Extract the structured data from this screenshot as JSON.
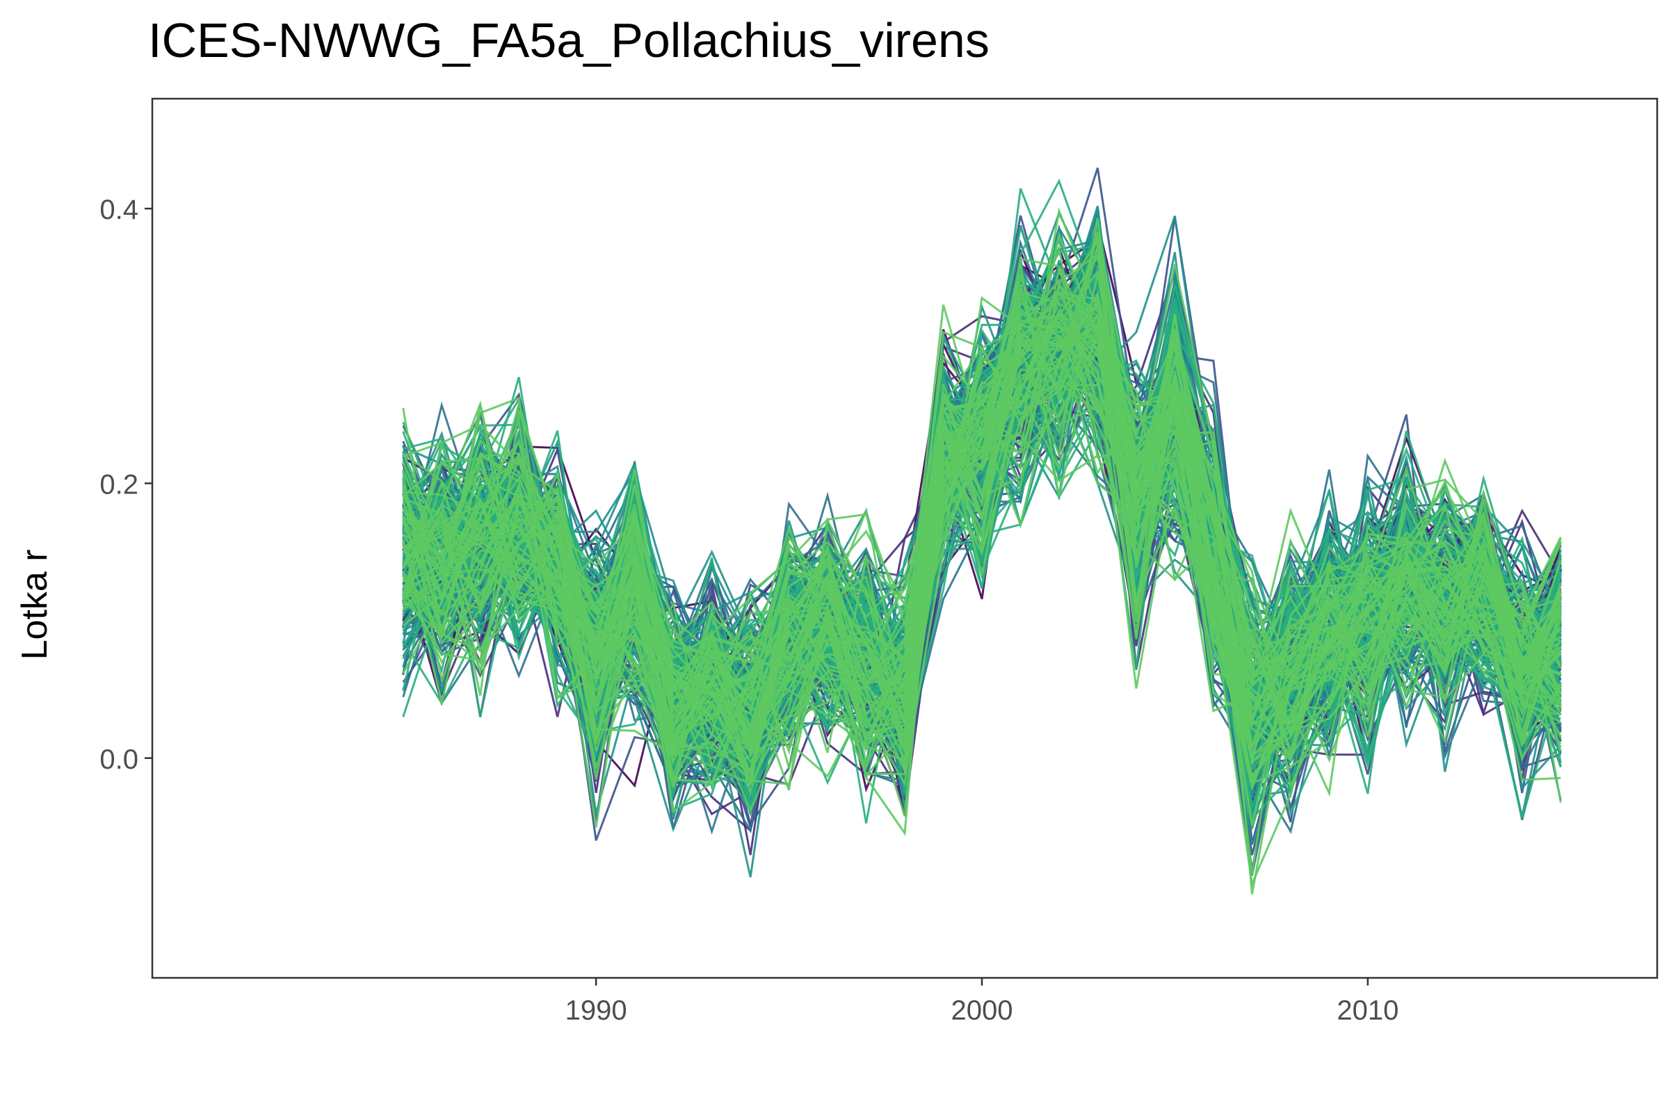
{
  "chart_data": {
    "type": "line",
    "title": "ICES-NWWG_FA5a_Pollachius_virens",
    "xlabel": "",
    "ylabel": "Lotka r",
    "xlim": [
      1978.5,
      2017.5
    ],
    "ylim": [
      -0.16,
      0.48
    ],
    "x_ticks": [
      1990,
      2000,
      2010
    ],
    "y_ticks": [
      0.0,
      0.2,
      0.4
    ],
    "x_tick_labels": [
      "1990",
      "2000",
      "2010"
    ],
    "y_tick_labels": [
      "0.0",
      "0.2",
      "0.4"
    ],
    "grid": false,
    "legend": "none",
    "x": [
      1985,
      1986,
      1987,
      1988,
      1989,
      1990,
      1991,
      1992,
      1993,
      1994,
      1995,
      1996,
      1997,
      1998,
      1999,
      2000,
      2001,
      2002,
      2003,
      2004,
      2005,
      2006,
      2007,
      2008,
      2009,
      2010,
      2011,
      2012,
      2013,
      2014,
      2015
    ],
    "median_values": [
      0.15,
      0.15,
      0.16,
      0.17,
      0.14,
      0.07,
      0.12,
      0.04,
      0.05,
      0.03,
      0.08,
      0.1,
      0.07,
      0.05,
      0.22,
      0.23,
      0.29,
      0.3,
      0.31,
      0.18,
      0.26,
      0.15,
      0.03,
      0.06,
      0.09,
      0.1,
      0.13,
      0.11,
      0.13,
      0.06,
      0.08
    ],
    "lower_values": [
      0.05,
      0.06,
      0.05,
      0.08,
      0.05,
      -0.04,
      0.0,
      -0.06,
      -0.04,
      -0.09,
      -0.01,
      0.0,
      -0.03,
      -0.05,
      0.12,
      0.12,
      0.19,
      0.21,
      0.22,
      0.07,
      0.15,
      0.04,
      -0.08,
      -0.04,
      -0.01,
      -0.01,
      0.03,
      0.01,
      0.04,
      -0.04,
      -0.02
    ],
    "upper_values": [
      0.25,
      0.25,
      0.26,
      0.28,
      0.23,
      0.16,
      0.2,
      0.12,
      0.13,
      0.11,
      0.18,
      0.19,
      0.16,
      0.14,
      0.31,
      0.33,
      0.4,
      0.4,
      0.45,
      0.29,
      0.4,
      0.27,
      0.13,
      0.16,
      0.19,
      0.2,
      0.23,
      0.21,
      0.21,
      0.16,
      0.17
    ],
    "n_series": 300,
    "colors": [
      "#440154",
      "#472d7b",
      "#3b528b",
      "#2c728e",
      "#21918c",
      "#28ae80",
      "#5ec962"
    ]
  }
}
